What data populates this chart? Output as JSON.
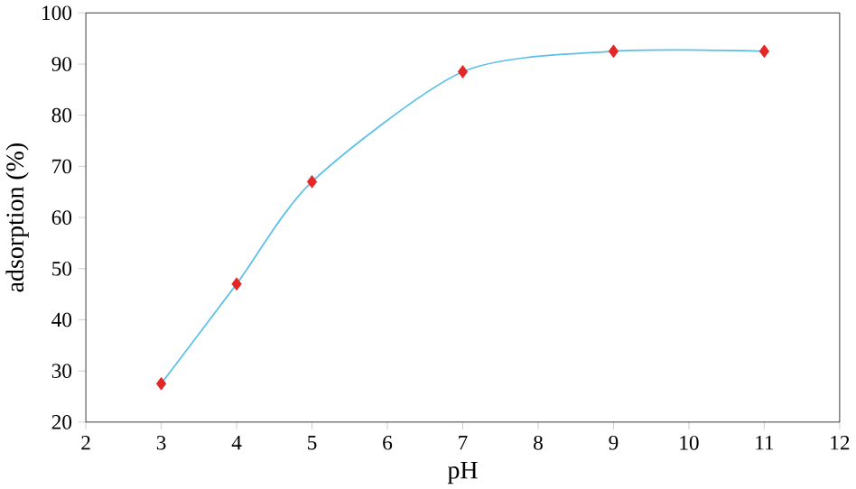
{
  "chart_data": {
    "type": "line",
    "xlabel": "pH",
    "ylabel": "adsorption (%)",
    "x": [
      3,
      4,
      5,
      7,
      9,
      11
    ],
    "series": [
      {
        "type": "line",
        "color": "#5bc0e8",
        "values": [
          27.5,
          47,
          67,
          88.5,
          92.5,
          92.5
        ],
        "marker": "none"
      },
      {
        "type": "scatter",
        "color": "#e32626",
        "values": [
          27.5,
          47,
          67,
          88.5,
          92.5,
          92.5
        ],
        "marker": "diamond"
      }
    ],
    "xlim": [
      2,
      12
    ],
    "xticks": [
      2,
      3,
      4,
      5,
      6,
      7,
      8,
      9,
      10,
      11,
      12
    ],
    "ylim": [
      20,
      100
    ],
    "yticks": [
      20,
      30,
      40,
      50,
      60,
      70,
      80,
      90,
      100
    ]
  }
}
